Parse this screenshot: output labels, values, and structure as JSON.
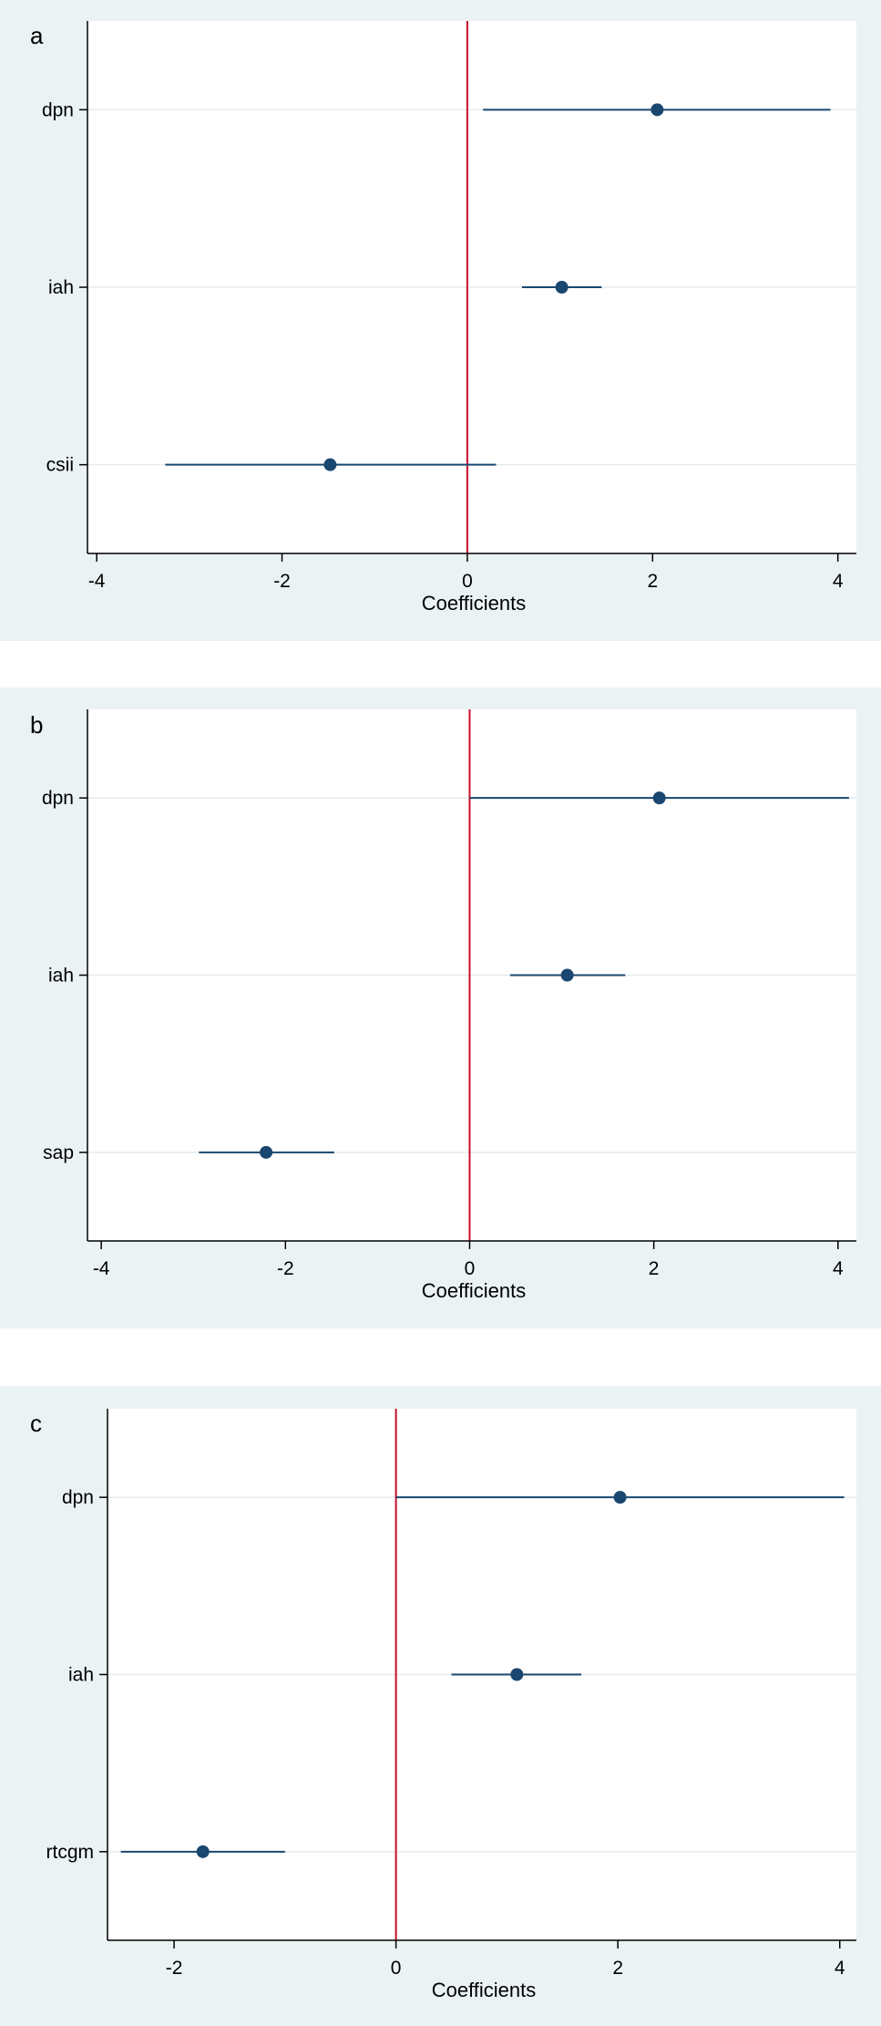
{
  "chart_data": [
    {
      "type": "scatter",
      "panel_label": "a",
      "xlabel": "Coefficients",
      "ylabel": "",
      "xticks": [
        -4,
        -2,
        0,
        2,
        4
      ],
      "xlim": [
        -4.1,
        4.2
      ],
      "reference_line_x": 0,
      "grid": "horizontal",
      "points": [
        {
          "label": "dpn",
          "estimate": 2.05,
          "ci_low": 0.17,
          "ci_high": 3.92
        },
        {
          "label": "iah",
          "estimate": 1.02,
          "ci_low": 0.59,
          "ci_high": 1.45
        },
        {
          "label": "csii",
          "estimate": -1.48,
          "ci_low": -3.26,
          "ci_high": 0.31
        }
      ]
    },
    {
      "type": "scatter",
      "panel_label": "b",
      "xlabel": "Coefficients",
      "ylabel": "",
      "xticks": [
        -4,
        -2,
        0,
        2,
        4
      ],
      "xlim": [
        -4.15,
        4.2
      ],
      "reference_line_x": 0,
      "grid": "horizontal",
      "points": [
        {
          "label": "dpn",
          "estimate": 2.06,
          "ci_low": 0.0,
          "ci_high": 4.12
        },
        {
          "label": "iah",
          "estimate": 1.06,
          "ci_low": 0.44,
          "ci_high": 1.69
        },
        {
          "label": "sap",
          "estimate": -2.21,
          "ci_low": -2.94,
          "ci_high": -1.47
        }
      ]
    },
    {
      "type": "scatter",
      "panel_label": "c",
      "xlabel": "Coefficients",
      "ylabel": "",
      "xticks": [
        -2,
        0,
        2,
        4
      ],
      "xlim": [
        -2.6,
        4.15
      ],
      "reference_line_x": 0,
      "grid": "horizontal",
      "points": [
        {
          "label": "dpn",
          "estimate": 2.02,
          "ci_low": 0.0,
          "ci_high": 4.04
        },
        {
          "label": "iah",
          "estimate": 1.09,
          "ci_low": 0.5,
          "ci_high": 1.67
        },
        {
          "label": "rtcgm",
          "estimate": -1.74,
          "ci_low": -2.48,
          "ci_high": -1.0
        }
      ]
    }
  ]
}
